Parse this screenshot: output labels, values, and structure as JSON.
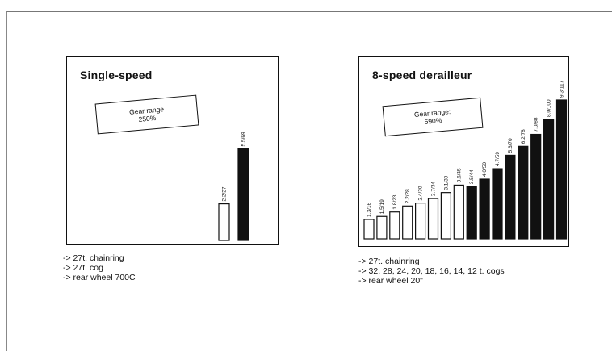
{
  "chart_data": [
    {
      "type": "bar",
      "title": "Single-speed",
      "gear_range_label": "Gear range",
      "gear_range_value": "250%",
      "categories": [
        "2.2/27",
        "5.5/69"
      ],
      "values": [
        2.2,
        5.5
      ],
      "bar_fills": [
        "white",
        "black"
      ],
      "ylim": [
        0,
        9.3
      ],
      "notes": [
        "-> 27t. chainring",
        "-> 27t. cog",
        "-> rear wheel 700C"
      ]
    },
    {
      "type": "bar",
      "title": "8-speed derailleur",
      "gear_range_label": "Gear range:",
      "gear_range_value": "690%",
      "categories": [
        "1.3/16",
        "1.5/19",
        "1.8/23",
        "2.2/28",
        "2.4/30",
        "2.7/34",
        "3.1/39",
        "3.6/45",
        "3.5/44",
        "4.0/50",
        "4.7/59",
        "5.6/70",
        "6.2/78",
        "7.0/88",
        "8.0/100",
        "9.3/117"
      ],
      "values": [
        1.3,
        1.5,
        1.8,
        2.2,
        2.4,
        2.7,
        3.1,
        3.6,
        3.5,
        4.0,
        4.7,
        5.6,
        6.2,
        7.0,
        8.0,
        9.3
      ],
      "bar_fills": [
        "white",
        "white",
        "white",
        "white",
        "white",
        "white",
        "white",
        "white",
        "black",
        "black",
        "black",
        "black",
        "black",
        "black",
        "black",
        "black"
      ],
      "ylim": [
        0,
        9.3
      ],
      "notes": [
        "-> 27t. chainring",
        "-> 32, 28, 24, 20, 18, 16, 14, 12 t. cogs",
        "-> rear wheel 20\""
      ]
    }
  ]
}
